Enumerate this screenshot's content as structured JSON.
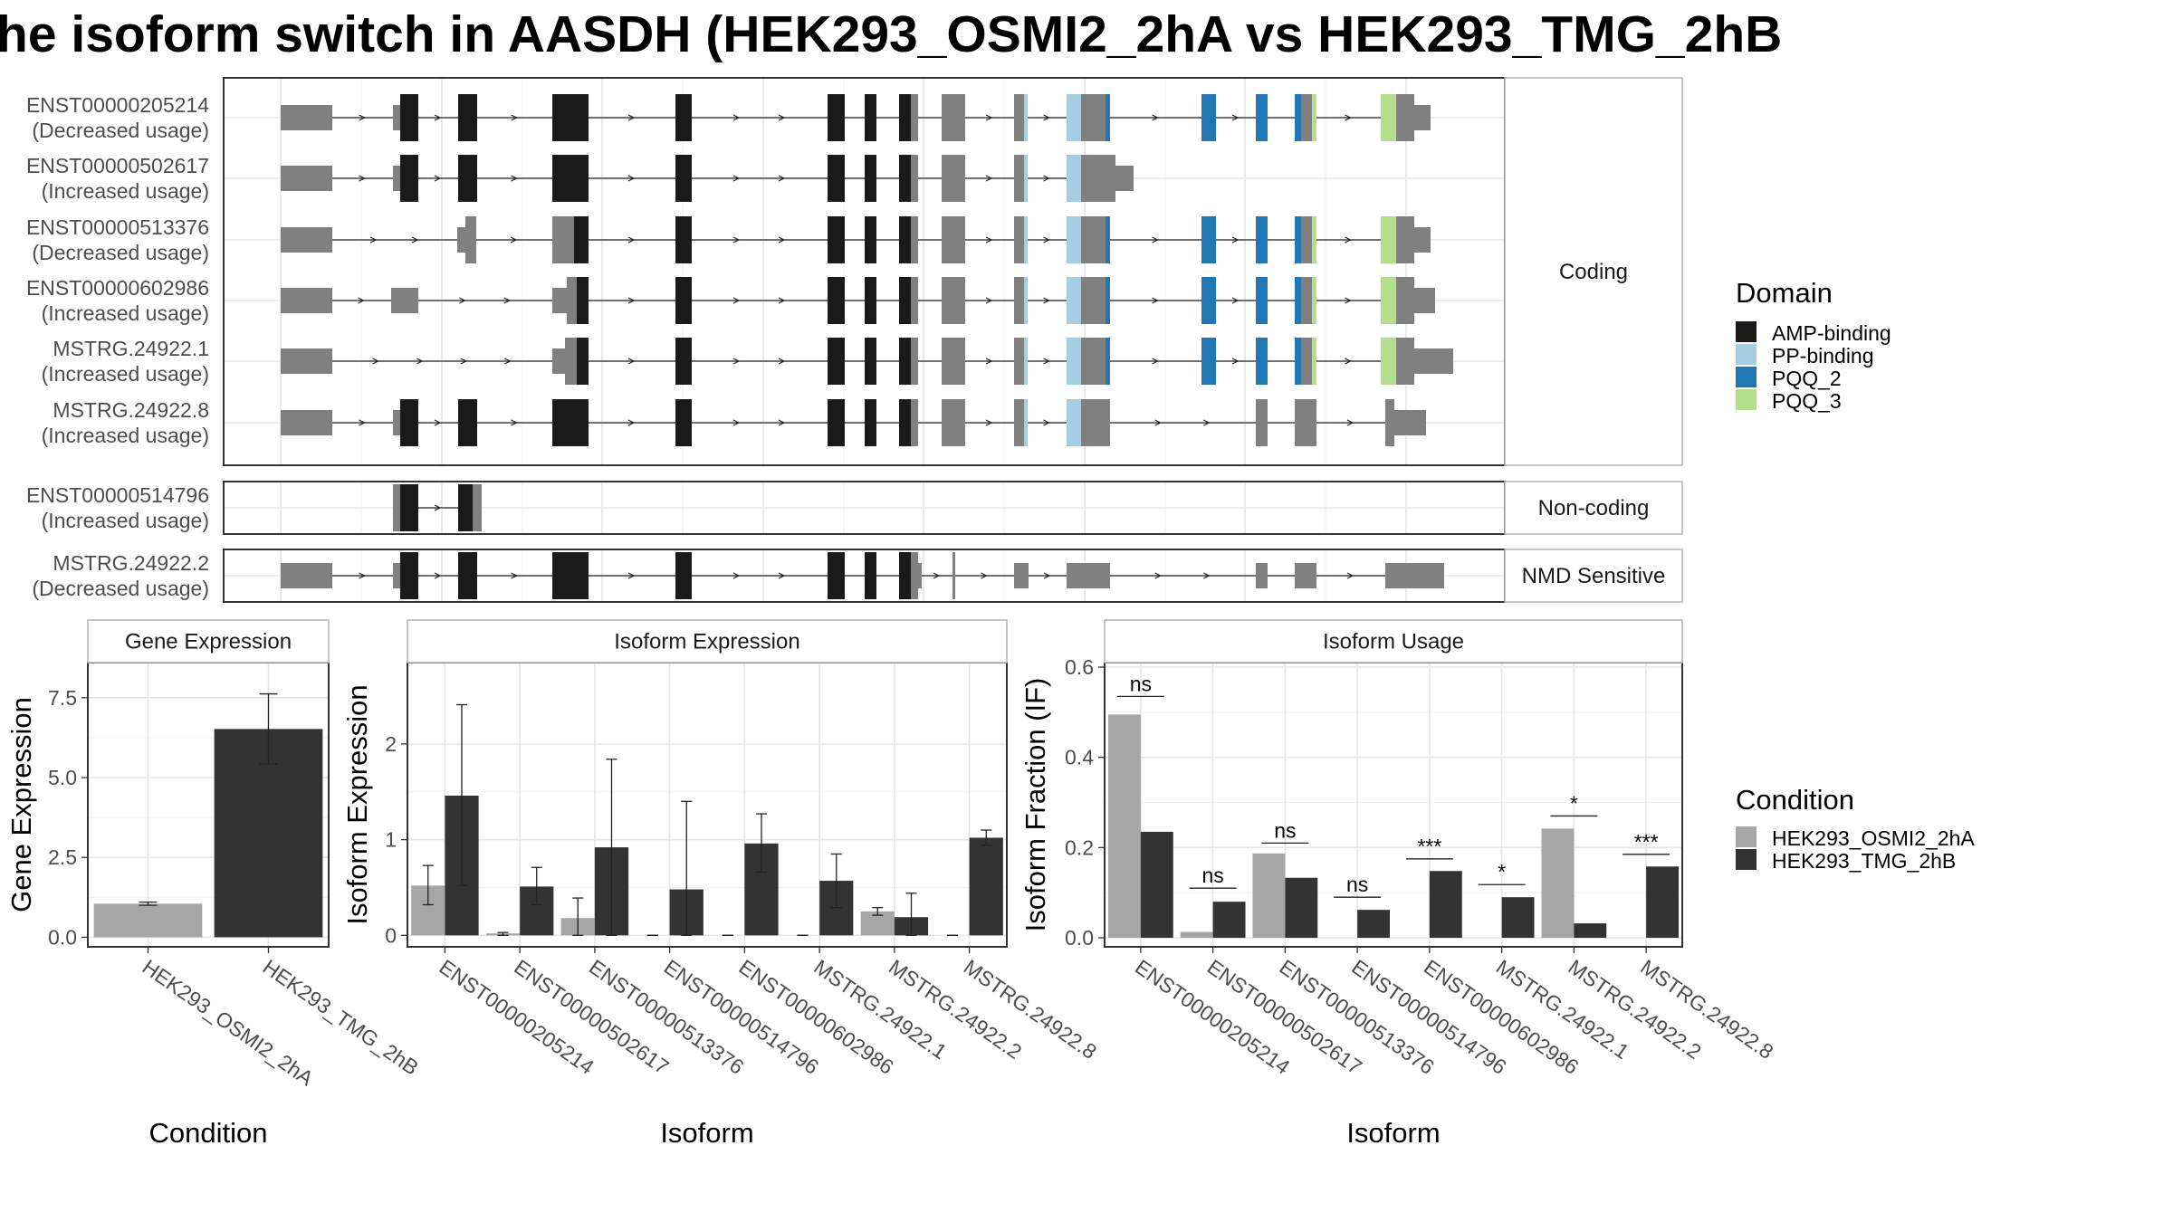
{
  "title": "he isoform switch in AASDH (HEK293_OSMI2_2hA vs HEK293_TMG_2hB",
  "colors": {
    "exon": "#808080",
    "amp_binding": "#1a1a1a",
    "pp_binding": "#a6cee3",
    "pqq_2": "#1f78b4",
    "pqq_3": "#b2df8a",
    "cond_a": "#a6a6a6",
    "cond_b": "#333333",
    "panel_border": "#333333",
    "strip_bg": "#ffffff"
  },
  "domain_legend": {
    "title": "Domain",
    "items": [
      {
        "label": "AMP-binding",
        "color": "#1a1a1a"
      },
      {
        "label": "PP-binding",
        "color": "#a6cee3"
      },
      {
        "label": "PQQ_2",
        "color": "#1f78b4"
      },
      {
        "label": "PQQ_3",
        "color": "#b2df8a"
      }
    ]
  },
  "condition_legend": {
    "title": "Condition",
    "items": [
      {
        "label": "HEK293_OSMI2_2hA",
        "color": "#a6a6a6"
      },
      {
        "label": "HEK293_TMG_2hB",
        "color": "#333333"
      }
    ]
  },
  "structure_groups": [
    {
      "strip": "Coding",
      "isoforms": [
        {
          "name": "ENST00000205214",
          "usage": "(Decreased usage)",
          "structure": "full_coding"
        },
        {
          "name": "ENST00000502617",
          "usage": "(Increased usage)",
          "structure": "truncated_pp"
        },
        {
          "name": "ENST00000513376",
          "usage": "(Decreased usage)",
          "structure": "alt_start_1"
        },
        {
          "name": "ENST00000602986",
          "usage": "(Increased usage)",
          "structure": "alt_start_2"
        },
        {
          "name": "MSTRG.24922.1",
          "usage": "(Increased usage)",
          "structure": "alt_start_3"
        },
        {
          "name": "MSTRG.24922.8",
          "usage": "(Increased usage)",
          "structure": "no_pqq"
        }
      ]
    },
    {
      "strip": "Non-coding",
      "isoforms": [
        {
          "name": "ENST00000514796",
          "usage": "(Increased usage)",
          "structure": "short_nc"
        }
      ]
    },
    {
      "strip": "NMD Sensitive",
      "isoforms": [
        {
          "name": "MSTRG.24922.2",
          "usage": "(Decreased usage)",
          "structure": "nmd"
        }
      ]
    }
  ],
  "chart_data": [
    {
      "type": "bar",
      "panel": "Gene Expression",
      "xlabel": "Condition",
      "ylabel": "Gene Expression",
      "ylim": [
        -0.3,
        8.6
      ],
      "yticks": [
        0.0,
        2.5,
        5.0,
        7.5
      ],
      "ytick_labels": [
        "0.0",
        "2.5",
        "5.0",
        "7.5"
      ],
      "categories": [
        "HEK293_OSMI2_2hA",
        "HEK293_TMG_2hB"
      ],
      "values": [
        1.05,
        6.52
      ],
      "error_low": [
        1.0,
        5.42
      ],
      "error_high": [
        1.1,
        7.62
      ]
    },
    {
      "type": "bar",
      "panel": "Isoform Expression",
      "xlabel": "Isoform",
      "ylabel": "Isoform Expression",
      "ylim": [
        -0.12,
        2.85
      ],
      "yticks": [
        0,
        1,
        2
      ],
      "ytick_labels": [
        "0",
        "1",
        "2"
      ],
      "categories": [
        "ENST00000205214",
        "ENST00000502617",
        "ENST00000513376",
        "ENST00000514796",
        "ENST00000602986",
        "MSTRG.24922.1",
        "MSTRG.24922.2",
        "MSTRG.24922.8"
      ],
      "series": [
        {
          "name": "HEK293_OSMI2_2hA",
          "values": [
            0.52,
            0.02,
            0.18,
            0.0,
            0.0,
            0.0,
            0.25,
            0.0
          ],
          "error_low": [
            0.32,
            0.0,
            0.0,
            0.0,
            0.0,
            0.0,
            0.21,
            0.0
          ],
          "error_high": [
            0.73,
            0.03,
            0.39,
            0.0,
            0.0,
            0.0,
            0.29,
            0.0
          ]
        },
        {
          "name": "HEK293_TMG_2hB",
          "values": [
            1.46,
            0.51,
            0.92,
            0.48,
            0.96,
            0.57,
            0.19,
            1.02
          ],
          "error_low": [
            0.52,
            0.32,
            0.0,
            0.0,
            0.66,
            0.29,
            0.0,
            0.94
          ],
          "error_high": [
            2.41,
            0.71,
            1.84,
            1.4,
            1.27,
            0.85,
            0.44,
            1.1
          ]
        }
      ]
    },
    {
      "type": "bar",
      "panel": "Isoform Usage",
      "xlabel": "Isoform",
      "ylabel": "Isoform Fraction (IF)",
      "ylim": [
        -0.02,
        0.61
      ],
      "yticks": [
        0.0,
        0.2,
        0.4,
        0.6
      ],
      "ytick_labels": [
        "0.0",
        "0.2",
        "0.4",
        "0.6"
      ],
      "categories": [
        "ENST00000205214",
        "ENST00000502617",
        "ENST00000513376",
        "ENST00000514796",
        "ENST00000602986",
        "MSTRG.24922.1",
        "MSTRG.24922.2",
        "MSTRG.24922.8"
      ],
      "series": [
        {
          "name": "HEK293_OSMI2_2hA",
          "values": [
            0.495,
            0.013,
            0.187,
            0.0,
            0.0,
            0.0,
            0.242,
            0.0
          ]
        },
        {
          "name": "HEK293_TMG_2hB",
          "values": [
            0.235,
            0.08,
            0.133,
            0.062,
            0.148,
            0.09,
            0.032,
            0.158
          ]
        }
      ],
      "significance": [
        {
          "label": "ns",
          "y": 0.535
        },
        {
          "label": "ns",
          "y": 0.11
        },
        {
          "label": "ns",
          "y": 0.21
        },
        {
          "label": "ns",
          "y": 0.09
        },
        {
          "label": "***",
          "y": 0.175
        },
        {
          "label": "*",
          "y": 0.118
        },
        {
          "label": "*",
          "y": 0.27
        },
        {
          "label": "***",
          "y": 0.185
        }
      ]
    }
  ]
}
